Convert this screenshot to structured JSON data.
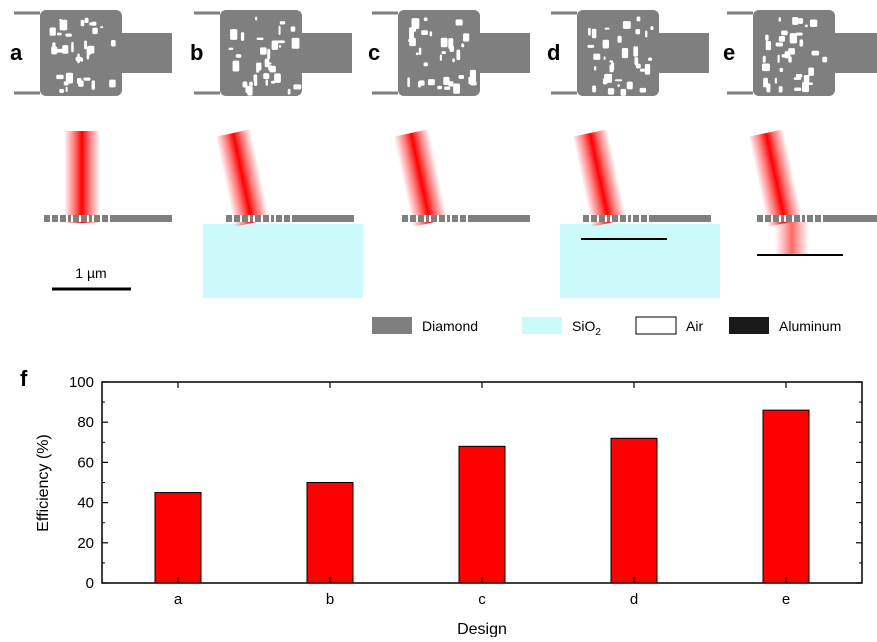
{
  "panels": [
    {
      "letter": "a",
      "tilted": false,
      "substrate": false,
      "mirror": false
    },
    {
      "letter": "b",
      "tilted": true,
      "substrate": true,
      "mirror": false
    },
    {
      "letter": "c",
      "tilted": true,
      "substrate": false,
      "mirror": false
    },
    {
      "letter": "d",
      "tilted": true,
      "substrate": true,
      "mirror": true
    },
    {
      "letter": "e",
      "tilted": true,
      "substrate": false,
      "mirror": true
    }
  ],
  "scalebar_label": "1 µm",
  "legend": [
    {
      "label": "Diamond",
      "color": "#7f7f7f",
      "outlined": false
    },
    {
      "label": "SiO2",
      "color": "#ccfafa",
      "outlined": false
    },
    {
      "label": "Air",
      "color": "#ffffff",
      "outlined": true
    },
    {
      "label": "Aluminum",
      "color": "#1a1a1a",
      "outlined": false
    }
  ],
  "colors": {
    "diamond": "#7f7f7f",
    "sio2": "#ccfafa",
    "beam": "#ff0000",
    "bar": "#ff0000"
  },
  "chart_panel_letter": "f",
  "chart_data": {
    "type": "bar",
    "categories": [
      "a",
      "b",
      "c",
      "d",
      "e"
    ],
    "values": [
      45,
      50,
      68,
      72,
      86
    ],
    "xlabel": "Design",
    "ylabel": "Efficiency (%)",
    "ylim": [
      0,
      100
    ],
    "yticks": [
      0,
      20,
      40,
      60,
      80,
      100
    ],
    "grid": false
  }
}
